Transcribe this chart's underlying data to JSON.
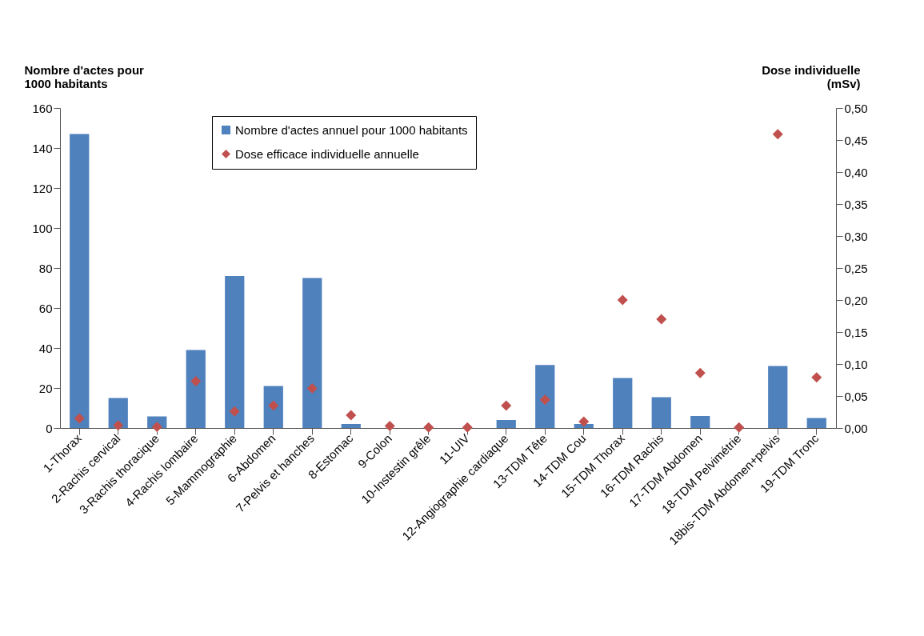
{
  "chart_data": {
    "type": "bar",
    "ylabel": "Nombre d'actes pour\n1000 habitants",
    "y2label": "Dose individuelle\n(mSv)",
    "categories": [
      "1-Thorax",
      "2-Rachis cervical",
      "3-Rachis thoracique",
      "4-Rachis lombaire",
      "5-Mammographie",
      "6-Abdomen",
      "7-Pelvis et hanches",
      "8-Estomac",
      "9-Colon",
      "10-Instestin grêle",
      "11-UIV",
      "12-Angiographie cardiaque",
      "13-TDM Tête",
      "14-TDM Cou",
      "15-TDM Thorax",
      "16-TDM Rachis",
      "17-TDM Abdomen",
      "18-TDM Pelvimétrie",
      "18bis-TDM Abdomen+pelvis",
      "19-TDM Tronc"
    ],
    "series": [
      {
        "name": "Nombre d'actes annuel pour 1000 habitants",
        "color": "#4f81bd",
        "values": [
          147,
          15,
          5.8,
          39,
          76,
          21,
          75,
          2,
          null,
          0,
          0,
          4,
          31.5,
          2,
          25,
          15.4,
          6,
          0,
          31,
          5
        ]
      },
      {
        "name": "Dose efficace individuelle annuelle",
        "type": "scatter",
        "axis": "y2",
        "color": "#c0504d",
        "values": [
          0.015,
          0.004,
          0.002,
          0.073,
          0.026,
          0.035,
          0.062,
          0.02,
          0.003,
          0.001,
          0.001,
          0.035,
          0.044,
          0.01,
          0.2,
          0.17,
          0.086,
          0.001,
          0.459,
          0.079
        ]
      }
    ],
    "ylim": [
      0,
      160
    ],
    "yticks": [
      0,
      20,
      40,
      60,
      80,
      100,
      120,
      140,
      160
    ],
    "y2lim": [
      0,
      0.5
    ],
    "y2ticks": [
      {
        "value": 0,
        "label": "0,00"
      },
      {
        "value": 0.05,
        "label": "0,05"
      },
      {
        "value": 0.1,
        "label": "0,10"
      },
      {
        "value": 0.15,
        "label": "0,15"
      },
      {
        "value": 0.2,
        "label": "0,20"
      },
      {
        "value": 0.25,
        "label": "0,25"
      },
      {
        "value": 0.3,
        "label": "0,30"
      },
      {
        "value": 0.35,
        "label": "0,35"
      },
      {
        "value": 0.4,
        "label": "0,40"
      },
      {
        "value": 0.45,
        "label": "0,45"
      },
      {
        "value": 0.5,
        "label": "0,50"
      }
    ],
    "marker": "diamond",
    "grid": false,
    "legend": "top left"
  }
}
